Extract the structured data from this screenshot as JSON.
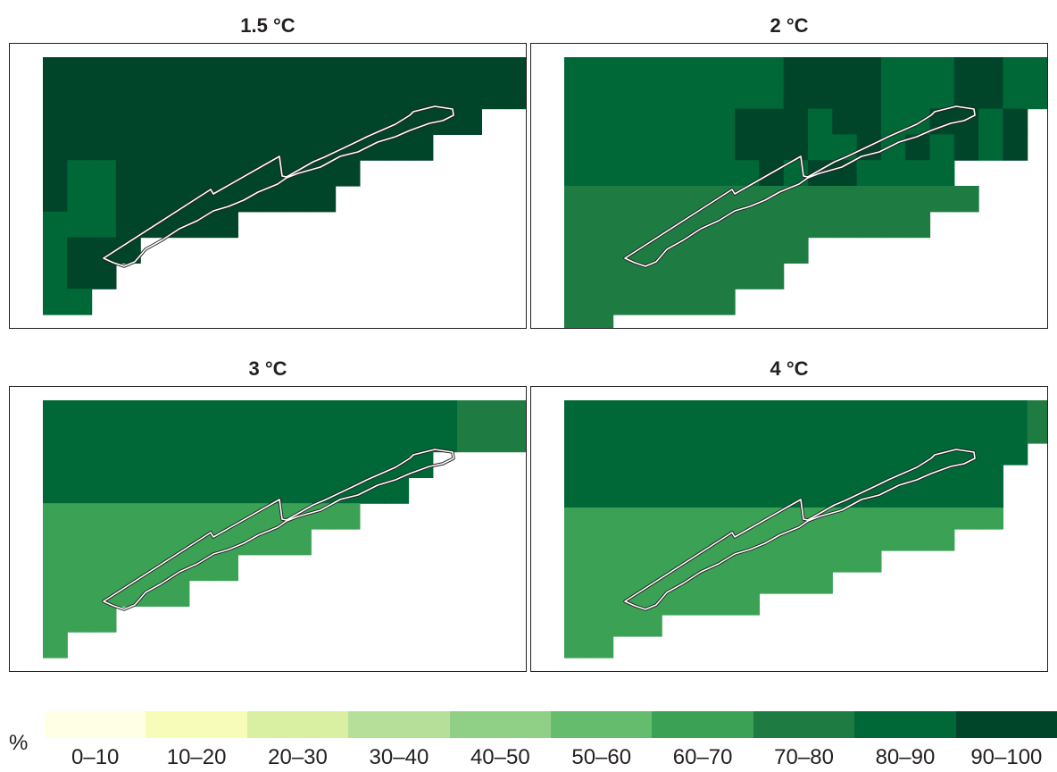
{
  "figure": {
    "panels": [
      {
        "title": "1.5 °C",
        "grid": [
          "99999999999999999999",
          "99999999999999999999",
          "999999999999999999  ",
          "9999999999999999    ",
          "9889999999999       ",
          "988999999999        ",
          "88899999            ",
          "8999                ",
          "899                 ",
          "88                  "
        ]
      },
      {
        "title": "2 °C",
        "grid": [
          "8888888889999888998888",
          "8888888889999888998888",
          "8888888999899889989   ",
          "8888888999889898989   ",
          "8888888898998888      ",
          "77777777777777777     ",
          "777777777777777       ",
          "7777777777            ",
          "777777777             ",
          "7777777               ",
          "77                    "
        ]
      },
      {
        "title": "3 °C",
        "grid": [
          "88888888888888888777",
          "88888888888888888777",
          "8888888888888888    ",
          "888888888888888     ",
          "6666666666666       ",
          "66666666666         ",
          "66666666            ",
          "666666              ",
          "666                 ",
          "6                   "
        ]
      },
      {
        "title": "4 °C",
        "grid": [
          "8888888888888888888777",
          "8888888888888888888777",
          "8888888888888888888   ",
          "888888888888888888    ",
          "888888888888888888    ",
          "666666666666666666    ",
          "6666666666666666      ",
          "6666666666666         ",
          "66666666666           ",
          "66666666              ",
          "6666                  ",
          "66                    "
        ]
      }
    ]
  },
  "legend": {
    "unit": "%",
    "classes": [
      {
        "label": "0–10",
        "color": "#ffffe5"
      },
      {
        "label": "10–20",
        "color": "#f7fcb9"
      },
      {
        "label": "20–30",
        "color": "#d9f0a3"
      },
      {
        "label": "30–40",
        "color": "#b6e09a"
      },
      {
        "label": "40–50",
        "color": "#90d086"
      },
      {
        "label": "50–60",
        "color": "#64bc6c"
      },
      {
        "label": "60–70",
        "color": "#3ba155"
      },
      {
        "label": "70–80",
        "color": "#1e7c43"
      },
      {
        "label": "80–90",
        "color": "#006837"
      },
      {
        "label": "90–100",
        "color": "#00442a"
      }
    ]
  }
}
